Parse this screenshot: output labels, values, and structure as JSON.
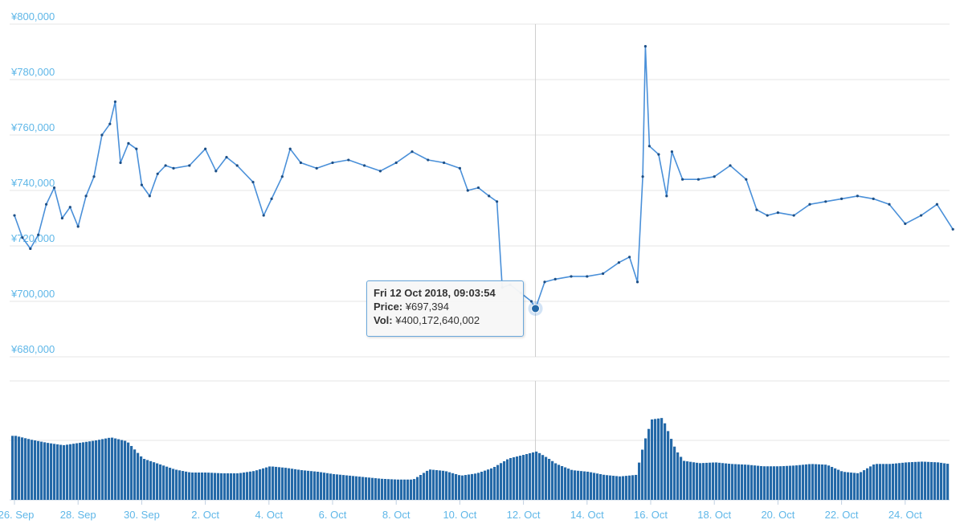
{
  "colors": {
    "price_line": "#4a90d9",
    "point": "#1d4f86",
    "volume": "#2469a8",
    "axis_text": "#5fb7e8",
    "grid": "#e6e6e6",
    "crosshair": "#cccccc"
  },
  "chart_data": [
    {
      "type": "line",
      "title": "",
      "xlabel": "",
      "ylabel": "",
      "ylim": [
        680000,
        800000
      ],
      "yticks": [
        "¥680,000",
        "¥700,000",
        "¥720,000",
        "¥740,000",
        "¥760,000",
        "¥780,000",
        "¥800,000"
      ],
      "xticks": [
        "26. Sep",
        "28. Sep",
        "30. Sep",
        "2. Oct",
        "4. Oct",
        "6. Oct",
        "8. Oct",
        "10. Oct",
        "12. Oct",
        "14. Oct",
        "16. Oct",
        "18. Oct",
        "20. Oct",
        "22. Oct",
        "24. Oct"
      ],
      "xrange_days": [
        "2018-09-26",
        "2018-10-25"
      ],
      "series": [
        {
          "points": [
            [
              "2018-09-26T00:00",
              731000
            ],
            [
              "2018-09-26T06:00",
              723000
            ],
            [
              "2018-09-26T12:00",
              719000
            ],
            [
              "2018-09-26T18:00",
              724000
            ],
            [
              "2018-09-27T00:00",
              735000
            ],
            [
              "2018-09-27T06:00",
              741000
            ],
            [
              "2018-09-27T12:00",
              730000
            ],
            [
              "2018-09-27T18:00",
              734000
            ],
            [
              "2018-09-28T00:00",
              727000
            ],
            [
              "2018-09-28T06:00",
              738000
            ],
            [
              "2018-09-28T12:00",
              745000
            ],
            [
              "2018-09-28T18:00",
              760000
            ],
            [
              "2018-09-29T00:00",
              764000
            ],
            [
              "2018-09-29T04:00",
              772000
            ],
            [
              "2018-09-29T08:00",
              750000
            ],
            [
              "2018-09-29T14:00",
              757000
            ],
            [
              "2018-09-29T20:00",
              755000
            ],
            [
              "2018-09-30T00:00",
              742000
            ],
            [
              "2018-09-30T06:00",
              738000
            ],
            [
              "2018-09-30T12:00",
              746000
            ],
            [
              "2018-09-30T18:00",
              749000
            ],
            [
              "2018-10-01T00:00",
              748000
            ],
            [
              "2018-10-01T12:00",
              749000
            ],
            [
              "2018-10-02T00:00",
              755000
            ],
            [
              "2018-10-02T08:00",
              747000
            ],
            [
              "2018-10-02T16:00",
              752000
            ],
            [
              "2018-10-03T00:00",
              749000
            ],
            [
              "2018-10-03T12:00",
              743000
            ],
            [
              "2018-10-03T20:00",
              731000
            ],
            [
              "2018-10-04T02:00",
              737000
            ],
            [
              "2018-10-04T10:00",
              745000
            ],
            [
              "2018-10-04T16:00",
              755000
            ],
            [
              "2018-10-05T00:00",
              750000
            ],
            [
              "2018-10-05T12:00",
              748000
            ],
            [
              "2018-10-06T00:00",
              750000
            ],
            [
              "2018-10-06T12:00",
              751000
            ],
            [
              "2018-10-07T00:00",
              749000
            ],
            [
              "2018-10-07T12:00",
              747000
            ],
            [
              "2018-10-08T00:00",
              750000
            ],
            [
              "2018-10-08T12:00",
              754000
            ],
            [
              "2018-10-09T00:00",
              751000
            ],
            [
              "2018-10-09T12:00",
              750000
            ],
            [
              "2018-10-10T00:00",
              748000
            ],
            [
              "2018-10-10T06:00",
              740000
            ],
            [
              "2018-10-10T14:00",
              741000
            ],
            [
              "2018-10-10T22:00",
              738000
            ],
            [
              "2018-10-11T04:00",
              736000
            ],
            [
              "2018-10-11T08:00",
              705000
            ],
            [
              "2018-10-11T14:00",
              706000
            ],
            [
              "2018-10-11T22:00",
              703000
            ],
            [
              "2018-10-12T06:00",
              700000
            ],
            [
              "2018-10-12T09:03",
              697394
            ],
            [
              "2018-10-12T16:00",
              707000
            ],
            [
              "2018-10-13T00:00",
              708000
            ],
            [
              "2018-10-13T12:00",
              709000
            ],
            [
              "2018-10-14T00:00",
              709000
            ],
            [
              "2018-10-14T12:00",
              710000
            ],
            [
              "2018-10-15T00:00",
              714000
            ],
            [
              "2018-10-15T08:00",
              716000
            ],
            [
              "2018-10-15T14:00",
              707000
            ],
            [
              "2018-10-15T18:00",
              745000
            ],
            [
              "2018-10-15T20:00",
              792000
            ],
            [
              "2018-10-15T23:00",
              756000
            ],
            [
              "2018-10-16T06:00",
              753000
            ],
            [
              "2018-10-16T12:00",
              738000
            ],
            [
              "2018-10-16T16:00",
              754000
            ],
            [
              "2018-10-17T00:00",
              744000
            ],
            [
              "2018-10-17T12:00",
              744000
            ],
            [
              "2018-10-18T00:00",
              745000
            ],
            [
              "2018-10-18T12:00",
              749000
            ],
            [
              "2018-10-19T00:00",
              744000
            ],
            [
              "2018-10-19T08:00",
              733000
            ],
            [
              "2018-10-19T16:00",
              731000
            ],
            [
              "2018-10-20T00:00",
              732000
            ],
            [
              "2018-10-20T12:00",
              731000
            ],
            [
              "2018-10-21T00:00",
              735000
            ],
            [
              "2018-10-21T12:00",
              736000
            ],
            [
              "2018-10-22T00:00",
              737000
            ],
            [
              "2018-10-22T12:00",
              738000
            ],
            [
              "2018-10-23T00:00",
              737000
            ],
            [
              "2018-10-23T12:00",
              735000
            ],
            [
              "2018-10-24T00:00",
              728000
            ],
            [
              "2018-10-24T12:00",
              731000
            ],
            [
              "2018-10-25T00:00",
              735000
            ],
            [
              "2018-10-25T12:00",
              726000
            ]
          ]
        }
      ]
    },
    {
      "type": "bar",
      "title": "",
      "xlabel": "",
      "ylabel": "",
      "series": [
        {
          "points": [
            [
              "2018-09-26T00:00",
              8.2
            ],
            [
              "2018-09-26T12:00",
              7.7
            ],
            [
              "2018-09-27T00:00",
              7.3
            ],
            [
              "2018-09-27T12:00",
              7.0
            ],
            [
              "2018-09-28T00:00",
              7.3
            ],
            [
              "2018-09-28T12:00",
              7.6
            ],
            [
              "2018-09-29T00:00",
              8.0
            ],
            [
              "2018-09-29T12:00",
              7.5
            ],
            [
              "2018-09-30T00:00",
              5.3
            ],
            [
              "2018-09-30T12:00",
              4.6
            ],
            [
              "2018-10-01T00:00",
              3.9
            ],
            [
              "2018-10-01T12:00",
              3.5
            ],
            [
              "2018-10-02T00:00",
              3.5
            ],
            [
              "2018-10-02T12:00",
              3.4
            ],
            [
              "2018-10-03T00:00",
              3.4
            ],
            [
              "2018-10-03T12:00",
              3.7
            ],
            [
              "2018-10-04T00:00",
              4.3
            ],
            [
              "2018-10-04T12:00",
              4.1
            ],
            [
              "2018-10-05T00:00",
              3.8
            ],
            [
              "2018-10-05T12:00",
              3.6
            ],
            [
              "2018-10-06T00:00",
              3.3
            ],
            [
              "2018-10-06T12:00",
              3.1
            ],
            [
              "2018-10-07T00:00",
              2.9
            ],
            [
              "2018-10-07T12:00",
              2.7
            ],
            [
              "2018-10-08T00:00",
              2.6
            ],
            [
              "2018-10-08T12:00",
              2.6
            ],
            [
              "2018-10-09T00:00",
              3.9
            ],
            [
              "2018-10-09T12:00",
              3.7
            ],
            [
              "2018-10-10T00:00",
              3.1
            ],
            [
              "2018-10-10T12:00",
              3.4
            ],
            [
              "2018-10-11T00:00",
              4.1
            ],
            [
              "2018-10-11T12:00",
              5.3
            ],
            [
              "2018-10-12T00:00",
              5.8
            ],
            [
              "2018-10-12T09:03",
              6.2
            ],
            [
              "2018-10-12T18:00",
              5.3
            ],
            [
              "2018-10-13T00:00",
              4.6
            ],
            [
              "2018-10-13T12:00",
              3.8
            ],
            [
              "2018-10-14T00:00",
              3.6
            ],
            [
              "2018-10-14T12:00",
              3.2
            ],
            [
              "2018-10-15T00:00",
              3.0
            ],
            [
              "2018-10-15T12:00",
              3.2
            ],
            [
              "2018-10-15T18:00",
              7.3
            ],
            [
              "2018-10-16T00:00",
              10.3
            ],
            [
              "2018-10-16T08:00",
              10.5
            ],
            [
              "2018-10-16T18:00",
              6.4
            ],
            [
              "2018-10-17T00:00",
              5.0
            ],
            [
              "2018-10-17T12:00",
              4.7
            ],
            [
              "2018-10-18T00:00",
              4.8
            ],
            [
              "2018-10-18T12:00",
              4.6
            ],
            [
              "2018-10-19T00:00",
              4.5
            ],
            [
              "2018-10-19T12:00",
              4.3
            ],
            [
              "2018-10-20T00:00",
              4.3
            ],
            [
              "2018-10-20T12:00",
              4.4
            ],
            [
              "2018-10-21T00:00",
              4.6
            ],
            [
              "2018-10-21T12:00",
              4.5
            ],
            [
              "2018-10-22T00:00",
              3.6
            ],
            [
              "2018-10-22T12:00",
              3.4
            ],
            [
              "2018-10-23T00:00",
              4.6
            ],
            [
              "2018-10-23T12:00",
              4.6
            ],
            [
              "2018-10-24T00:00",
              4.8
            ],
            [
              "2018-10-24T12:00",
              4.9
            ],
            [
              "2018-10-25T00:00",
              4.8
            ],
            [
              "2018-10-25T12:00",
              4.5
            ]
          ]
        }
      ]
    }
  ],
  "tooltip": {
    "date": "Fri 12 Oct 2018, 09:03:54",
    "price_label": "Price:",
    "price_value": "¥697,394",
    "vol_label": "Vol:",
    "vol_value": "¥400,172,640,002"
  }
}
